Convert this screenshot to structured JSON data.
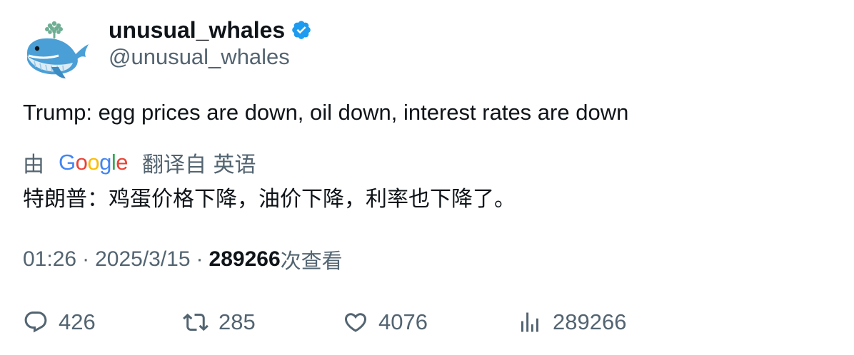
{
  "user": {
    "display_name": "unusual_whales",
    "handle": "@unusual_whales",
    "verified_color": "#1d9bf0"
  },
  "tweet": {
    "text": "Trump: egg prices are down, oil down, interest rates are down"
  },
  "translation": {
    "prefix": "由",
    "provider_letters": [
      {
        "ch": "G",
        "color": "#4285F4"
      },
      {
        "ch": "o",
        "color": "#EA4335"
      },
      {
        "ch": "o",
        "color": "#FBBC05"
      },
      {
        "ch": "g",
        "color": "#4285F4"
      },
      {
        "ch": "l",
        "color": "#34A853"
      },
      {
        "ch": "e",
        "color": "#EA4335"
      }
    ],
    "suffix": "翻译自 英语",
    "text": "特朗普：鸡蛋价格下降，油价下降，利率也下降了。"
  },
  "meta": {
    "time": "01:26",
    "separator": "·",
    "date": "2025/3/15",
    "views_count": "289266",
    "views_label": "次查看"
  },
  "actions": {
    "reply_icon": "reply-icon",
    "reply_count": "426",
    "retweet_icon": "retweet-icon",
    "retweet_count": "285",
    "like_icon": "heart-icon",
    "like_count": "4076",
    "views_icon": "views-chart-icon",
    "views_count": "289266"
  }
}
